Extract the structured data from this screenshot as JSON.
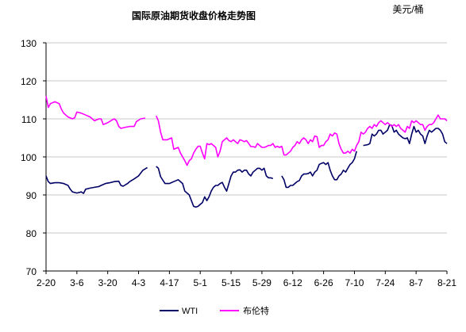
{
  "chart_data": {
    "type": "line",
    "title": "国际原油期货收盘价格走势图",
    "unit_label": "美元/桶",
    "xlabel": "",
    "ylabel": "",
    "ylim": [
      70,
      130
    ],
    "yticks": [
      70,
      80,
      90,
      100,
      110,
      120,
      130
    ],
    "grid": true,
    "legend_position": "bottom",
    "x_tick_labels": [
      "2-20",
      "3-6",
      "3-20",
      "4-3",
      "4-17",
      "5-1",
      "5-15",
      "5-29",
      "6-12",
      "6-26",
      "7-10",
      "7-24",
      "8-7",
      "8-21"
    ],
    "x_range": [
      0,
      182
    ],
    "series": [
      {
        "name": "WTI",
        "color": "#000066",
        "values": [
          [
            0,
            95.0
          ],
          [
            1,
            93.5
          ],
          [
            2,
            93.0
          ],
          [
            4,
            93.2
          ],
          [
            6,
            93.2
          ],
          [
            8,
            93.0
          ],
          [
            10,
            92.5
          ],
          [
            11,
            91.5
          ],
          [
            12,
            90.8
          ],
          [
            14,
            90.5
          ],
          [
            16,
            90.8
          ],
          [
            17,
            90.4
          ],
          [
            18,
            91.5
          ],
          [
            20,
            91.8
          ],
          [
            22,
            92.0
          ],
          [
            24,
            92.2
          ],
          [
            25,
            92.5
          ],
          [
            27,
            93.0
          ],
          [
            29,
            93.2
          ],
          [
            31,
            93.5
          ],
          [
            33,
            93.6
          ],
          [
            34,
            92.5
          ],
          [
            35,
            92.3
          ],
          [
            37,
            93.0
          ],
          [
            38,
            93.5
          ],
          [
            40,
            94.2
          ],
          [
            42,
            95.0
          ],
          [
            44,
            96.5
          ],
          [
            46,
            97.2
          ],
          null,
          [
            50,
            97.5
          ],
          [
            51,
            97.0
          ],
          [
            52,
            94.8
          ],
          [
            54,
            93.0
          ],
          [
            56,
            93.0
          ],
          [
            58,
            93.5
          ],
          [
            60,
            94.0
          ],
          [
            62,
            93.0
          ],
          [
            63,
            91.0
          ],
          [
            65,
            90.0
          ],
          [
            66,
            88.5
          ],
          [
            67,
            87.0
          ],
          [
            68,
            86.8
          ],
          [
            69,
            87.0
          ],
          [
            70,
            87.5
          ],
          [
            71,
            88.0
          ],
          [
            72,
            89.5
          ],
          [
            73,
            88.5
          ],
          [
            74,
            89.5
          ],
          [
            75,
            91.0
          ],
          [
            76,
            92.0
          ],
          [
            77,
            92.5
          ],
          [
            78,
            92.5
          ],
          [
            79,
            93.0
          ],
          [
            80,
            93.3
          ],
          [
            81,
            92.0
          ],
          [
            82,
            91.0
          ],
          [
            83,
            93.0
          ],
          [
            84,
            95.0
          ],
          [
            85,
            96.0
          ],
          [
            86,
            96.0
          ],
          [
            87,
            96.5
          ],
          [
            88,
            96.6
          ],
          [
            89,
            96.0
          ],
          [
            90,
            96.5
          ],
          [
            91,
            96.5
          ],
          [
            92,
            95.5
          ],
          [
            93,
            95.0
          ],
          [
            94,
            96.0
          ],
          [
            95,
            96.5
          ],
          [
            96,
            97.0
          ],
          [
            97,
            97.0
          ],
          [
            98,
            96.5
          ],
          [
            99,
            97.0
          ],
          [
            100,
            95.0
          ],
          [
            101,
            94.5
          ],
          [
            102,
            94.5
          ],
          [
            103,
            94.3
          ],
          null,
          [
            107,
            95.0
          ],
          [
            108,
            94.0
          ],
          [
            109,
            92.0
          ],
          [
            110,
            92.0
          ],
          [
            111,
            92.5
          ],
          [
            112,
            92.5
          ],
          [
            113,
            93.0
          ],
          [
            114,
            93.5
          ],
          [
            115,
            93.8
          ],
          [
            116,
            95.0
          ],
          [
            117,
            95.5
          ],
          [
            118,
            95.5
          ],
          [
            119,
            95.6
          ],
          [
            120,
            96.0
          ],
          [
            121,
            95.0
          ],
          [
            122,
            96.0
          ],
          [
            123,
            96.5
          ],
          [
            124,
            98.0
          ],
          [
            125,
            98.3
          ],
          [
            126,
            98.5
          ],
          [
            127,
            98.0
          ],
          [
            128,
            98.5
          ],
          [
            129,
            96.5
          ],
          [
            130,
            95.0
          ],
          [
            131,
            94.0
          ],
          [
            132,
            94.0
          ],
          [
            133,
            95.0
          ],
          [
            134,
            95.5
          ],
          [
            135,
            96.5
          ],
          [
            136,
            96.0
          ],
          [
            137,
            97.0
          ],
          [
            138,
            98.0
          ],
          [
            139,
            98.5
          ],
          [
            140,
            99.5
          ],
          [
            141,
            101.5
          ],
          null,
          [
            144,
            103.0
          ],
          [
            146,
            103.2
          ],
          [
            147,
            103.5
          ],
          [
            148,
            106.0
          ],
          [
            149,
            105.5
          ],
          [
            150,
            106.0
          ],
          [
            151,
            107.0
          ],
          [
            152,
            107.0
          ],
          [
            153,
            106.0
          ],
          [
            154,
            106.5
          ],
          [
            155,
            107.0
          ],
          [
            156,
            108.5
          ],
          [
            157,
            108.2
          ],
          [
            158,
            106.5
          ],
          [
            159,
            107.0
          ],
          [
            160,
            106.0
          ],
          [
            161,
            105.5
          ],
          [
            162,
            105.0
          ],
          [
            163,
            104.8
          ],
          [
            164,
            105.0
          ],
          [
            165,
            103.5
          ],
          [
            166,
            106.0
          ],
          [
            167,
            108.0
          ],
          [
            168,
            106.5
          ],
          [
            169,
            107.0
          ],
          [
            170,
            106.0
          ],
          [
            171,
            105.5
          ],
          [
            172,
            103.5
          ],
          [
            173,
            105.5
          ],
          [
            174,
            107.0
          ],
          [
            175,
            106.5
          ],
          [
            176,
            107.0
          ],
          [
            177,
            107.5
          ],
          [
            178,
            107.5
          ],
          [
            179,
            107.0
          ],
          [
            180,
            106.0
          ],
          [
            181,
            104.0
          ],
          [
            182,
            103.5
          ]
        ]
      },
      {
        "name": "布伦特",
        "color": "#ff00ff",
        "values": [
          [
            0,
            116.0
          ],
          [
            1,
            113.0
          ],
          [
            2,
            114.0
          ],
          [
            4,
            114.5
          ],
          [
            6,
            114.0
          ],
          [
            7,
            112.5
          ],
          [
            8,
            111.5
          ],
          [
            10,
            110.5
          ],
          [
            12,
            110.0
          ],
          [
            13,
            110.3
          ],
          [
            14,
            111.8
          ],
          [
            16,
            111.5
          ],
          [
            18,
            111.0
          ],
          [
            20,
            110.5
          ],
          [
            22,
            109.5
          ],
          [
            24,
            110.0
          ],
          [
            25,
            110.0
          ],
          [
            26,
            108.5
          ],
          [
            28,
            109.0
          ],
          [
            30,
            109.7
          ],
          [
            31,
            110.0
          ],
          [
            32,
            109.5
          ],
          [
            33,
            108.0
          ],
          [
            34,
            107.5
          ],
          [
            36,
            107.8
          ],
          [
            38,
            108.0
          ],
          [
            40,
            108.0
          ],
          [
            41,
            109.3
          ],
          [
            43,
            110.0
          ],
          [
            45,
            110.2
          ],
          null,
          [
            50,
            110.8
          ],
          [
            51,
            109.5
          ],
          [
            52,
            106.5
          ],
          [
            53,
            104.5
          ],
          [
            55,
            104.5
          ],
          [
            57,
            105.0
          ],
          [
            58,
            102.0
          ],
          [
            60,
            102.5
          ],
          [
            61,
            101.0
          ],
          [
            62,
            100.0
          ],
          [
            63,
            99.0
          ],
          [
            64,
            97.8
          ],
          [
            65,
            99.0
          ],
          [
            66,
            99.5
          ],
          [
            67,
            101.0
          ],
          [
            68,
            102.0
          ],
          [
            69,
            102.8
          ],
          [
            70,
            102.8
          ],
          [
            71,
            101.0
          ],
          [
            72,
            99.5
          ],
          [
            73,
            103.5
          ],
          [
            74,
            103.2
          ],
          [
            75,
            103.5
          ],
          [
            76,
            103.0
          ],
          [
            77,
            102.5
          ],
          [
            78,
            100.0
          ],
          [
            79,
            101.5
          ],
          [
            80,
            104.0
          ],
          [
            81,
            104.5
          ],
          [
            82,
            105.0
          ],
          [
            83,
            104.3
          ],
          [
            84,
            104.0
          ],
          [
            85,
            104.5
          ],
          [
            86,
            104.0
          ],
          [
            87,
            103.5
          ],
          [
            88,
            104.5
          ],
          [
            89,
            104.3
          ],
          [
            90,
            104.0
          ],
          [
            91,
            104.3
          ],
          [
            92,
            103.5
          ],
          [
            93,
            102.7
          ],
          [
            94,
            102.7
          ],
          [
            95,
            102.5
          ],
          [
            96,
            103.5
          ],
          [
            97,
            103.0
          ],
          [
            98,
            102.5
          ],
          [
            99,
            102.5
          ],
          [
            100,
            102.7
          ],
          [
            101,
            103.0
          ],
          [
            102,
            103.0
          ],
          [
            103,
            103.5
          ],
          [
            104,
            102.5
          ],
          [
            105,
            102.8
          ],
          [
            106,
            102.5
          ],
          [
            107,
            102.8
          ],
          [
            108,
            100.5
          ],
          [
            109,
            100.5
          ],
          [
            110,
            101.0
          ],
          [
            111,
            101.5
          ],
          [
            112,
            102.5
          ],
          [
            113,
            103.0
          ],
          [
            114,
            104.0
          ],
          [
            115,
            103.5
          ],
          [
            116,
            104.5
          ],
          [
            117,
            105.0
          ],
          [
            118,
            104.5
          ],
          [
            119,
            103.5
          ],
          [
            120,
            104.5
          ],
          [
            121,
            104.0
          ],
          [
            122,
            105.5
          ],
          [
            123,
            105.3
          ],
          [
            124,
            102.5
          ],
          [
            125,
            103.0
          ],
          [
            126,
            103.0
          ],
          [
            127,
            104.0
          ],
          [
            128,
            104.5
          ],
          [
            129,
            106.0
          ],
          [
            130,
            105.5
          ],
          [
            131,
            106.3
          ],
          [
            132,
            106.0
          ],
          [
            133,
            103.5
          ],
          [
            134,
            102.0
          ],
          [
            135,
            101.0
          ],
          [
            136,
            101.0
          ],
          [
            137,
            101.5
          ],
          [
            138,
            101.0
          ],
          [
            139,
            102.0
          ],
          [
            140,
            101.5
          ],
          [
            141,
            103.0
          ],
          [
            142,
            104.0
          ],
          [
            143,
            106.5
          ],
          [
            144,
            106.0
          ],
          [
            145,
            106.5
          ],
          [
            146,
            107.5
          ],
          [
            147,
            108.0
          ],
          [
            148,
            107.5
          ],
          [
            149,
            108.5
          ],
          [
            150,
            108.0
          ],
          [
            151,
            109.0
          ],
          [
            152,
            109.5
          ],
          [
            153,
            109.0
          ],
          [
            154,
            108.5
          ],
          [
            155,
            109.0
          ],
          [
            156,
            108.5
          ],
          [
            157,
            108.0
          ],
          [
            158,
            108.5
          ],
          [
            159,
            108.0
          ],
          [
            160,
            108.5
          ],
          [
            161,
            107.5
          ],
          [
            162,
            107.0
          ],
          [
            163,
            106.5
          ],
          [
            164,
            108.0
          ],
          [
            165,
            107.5
          ],
          [
            166,
            109.5
          ],
          [
            167,
            109.0
          ],
          [
            168,
            109.5
          ],
          [
            169,
            109.0
          ],
          [
            170,
            108.5
          ],
          [
            171,
            108.5
          ],
          [
            172,
            107.0
          ],
          [
            173,
            108.0
          ],
          [
            174,
            108.5
          ],
          [
            175,
            108.5
          ],
          [
            176,
            109.0
          ],
          [
            177,
            110.0
          ],
          [
            178,
            111.0
          ],
          [
            179,
            110.0
          ],
          [
            180,
            110.0
          ],
          [
            181,
            110.0
          ],
          [
            182,
            109.5
          ]
        ]
      }
    ]
  }
}
